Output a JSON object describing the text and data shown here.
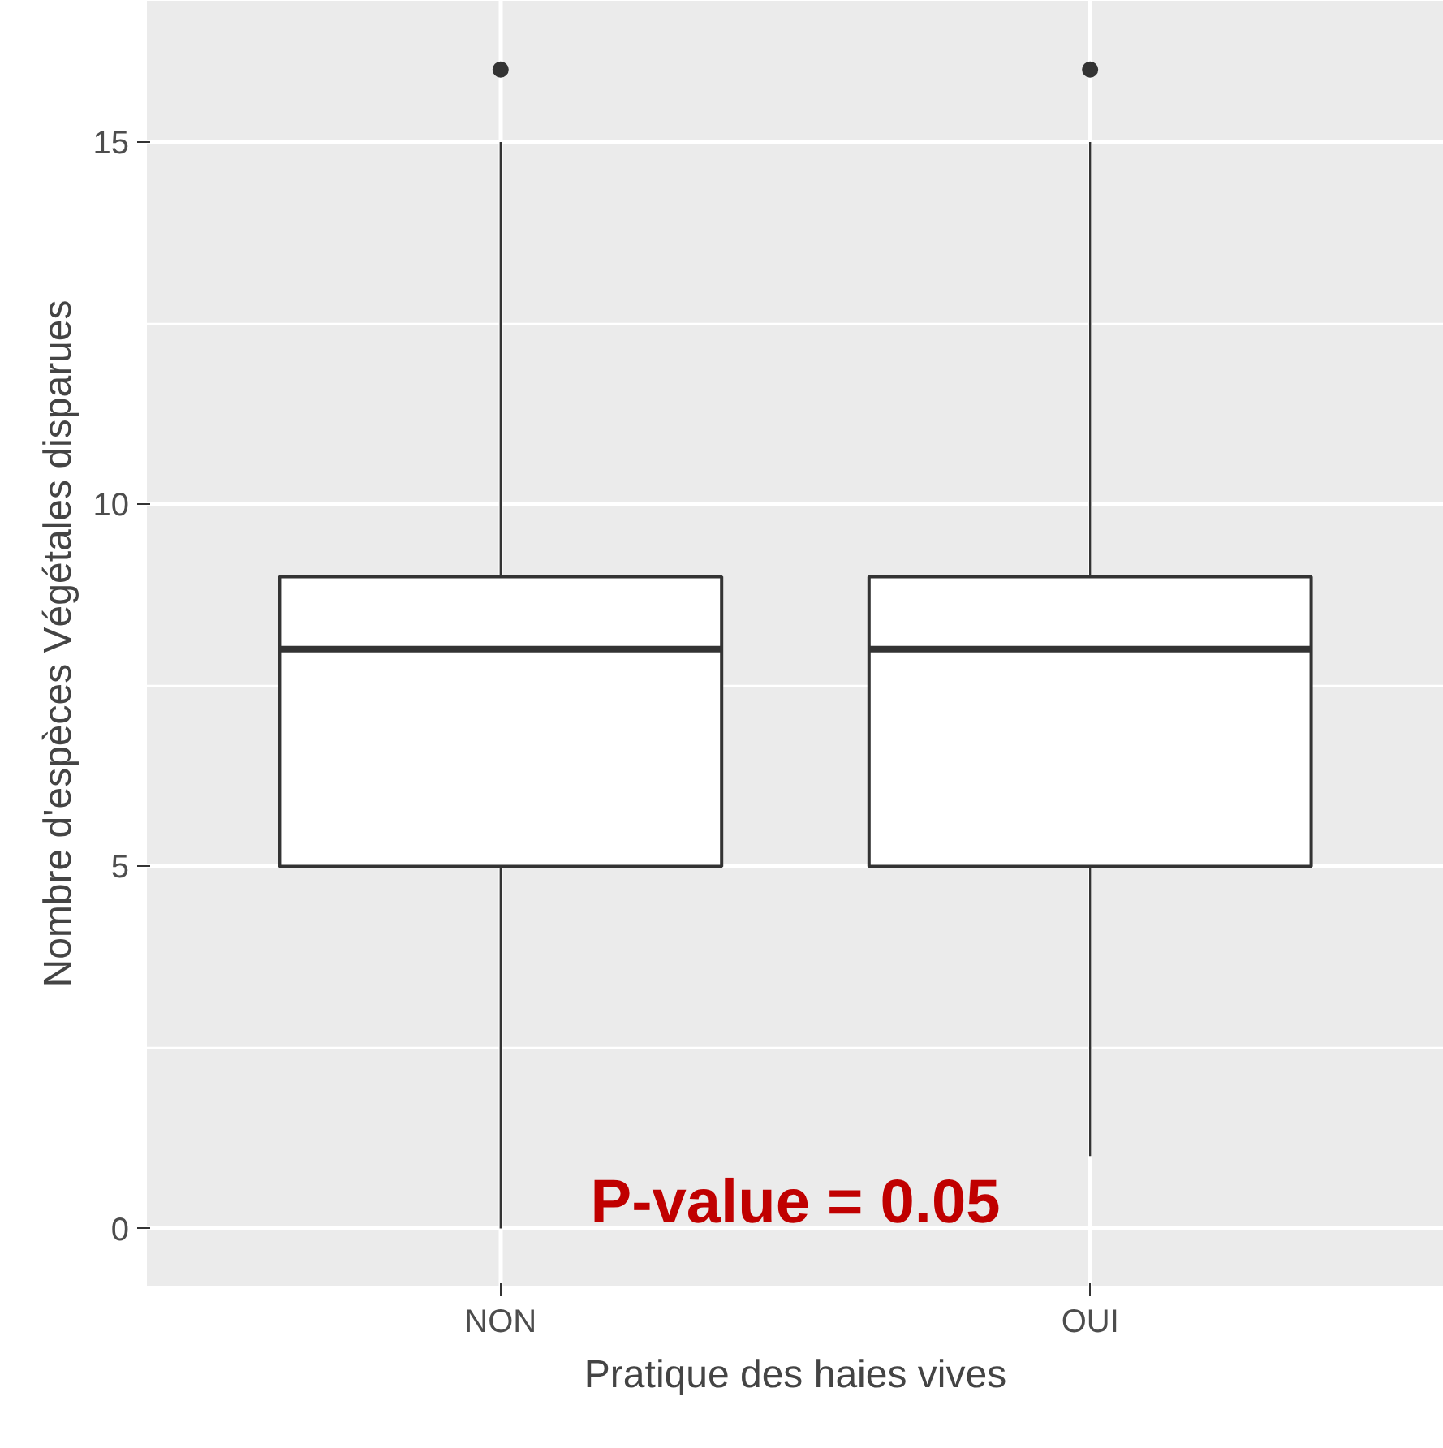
{
  "chart_data": {
    "type": "box",
    "xlabel": "Pratique des haies vives",
    "ylabel": "Nombre d'espèces Végétales disparues",
    "categories": [
      "NON",
      "OUI"
    ],
    "boxes": [
      {
        "low": 0,
        "q1": 5,
        "median": 8,
        "q3": 9,
        "high": 15,
        "outliers": [
          16
        ]
      },
      {
        "low": 1,
        "q1": 5,
        "median": 8,
        "q3": 9,
        "high": 15,
        "outliers": [
          16
        ]
      }
    ],
    "ylim": [
      -0.8,
      16.95
    ],
    "yticks": [
      0,
      5,
      10,
      15
    ],
    "grid": true,
    "annotations": [
      "P-value = 0.05"
    ]
  }
}
